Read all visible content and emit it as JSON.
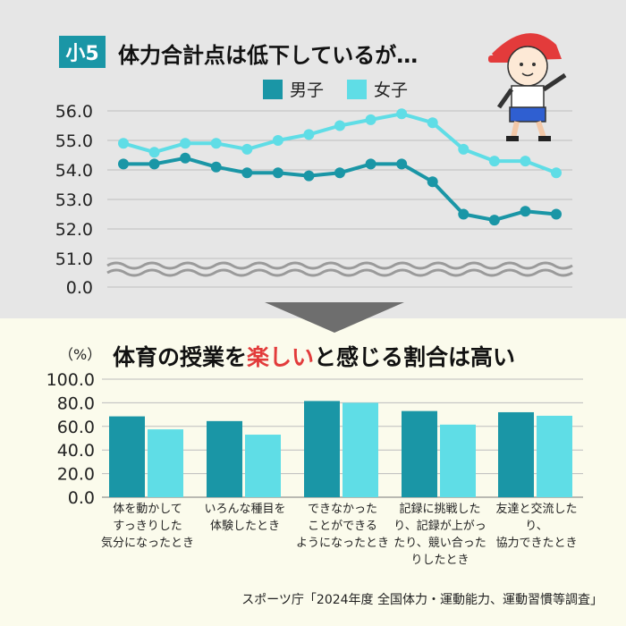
{
  "badge": "小5",
  "top_title": "体力合計点は低下しているが…",
  "colors": {
    "boys": "#1a96a6",
    "girls": "#5fdde6",
    "grid": "#bdbdbd",
    "highlight": "#e23b3b"
  },
  "bottom_title": {
    "before": "体育の授業を",
    "highlight": "楽しい",
    "after": "と感じる割合は高い"
  },
  "source": "スポーツ庁「2024年度 全国体力・運動能力、運動習慣等調査」",
  "chart_data": [
    {
      "type": "line",
      "title": "体力合計点は低下しているが…",
      "y_ticks": [
        "56.0",
        "55.0",
        "54.0",
        "53.0",
        "52.0",
        "51.0",
        "0.0"
      ],
      "ylim": [
        51.0,
        56.0
      ],
      "axis_break": true,
      "grid": true,
      "legend": "top-center",
      "series": [
        {
          "name": "男子",
          "values": [
            54.2,
            54.2,
            54.4,
            54.1,
            53.9,
            53.9,
            53.8,
            53.9,
            54.2,
            54.2,
            53.6,
            52.5,
            52.3,
            52.6,
            52.5
          ]
        },
        {
          "name": "女子",
          "values": [
            54.9,
            54.6,
            54.9,
            54.9,
            54.7,
            55.0,
            55.2,
            55.5,
            55.7,
            55.9,
            55.6,
            54.7,
            54.3,
            54.3,
            53.9
          ]
        }
      ]
    },
    {
      "type": "bar",
      "title": "体育の授業を楽しいと感じる割合は高い",
      "ylabel": "（%）",
      "y_ticks": [
        "100.0",
        "80.0",
        "60.0",
        "40.0",
        "20.0",
        "0.0"
      ],
      "ylim": [
        0,
        100
      ],
      "grid": true,
      "categories": [
        "体を動かして\nすっきりした\n気分になったとき",
        "いろんな種目を\n体験したとき",
        "できなかった\nことができる\nようになったとき",
        "記録に挑戦したり、記録が上がったり、競い合ったりしたとき",
        "友達と交流したり、\n協力できたとき"
      ],
      "series": [
        {
          "name": "男子",
          "values": [
            68.5,
            64.5,
            81.5,
            73.0,
            72.0
          ]
        },
        {
          "name": "女子",
          "values": [
            57.5,
            53.0,
            80.0,
            61.5,
            69.0
          ]
        }
      ]
    }
  ]
}
